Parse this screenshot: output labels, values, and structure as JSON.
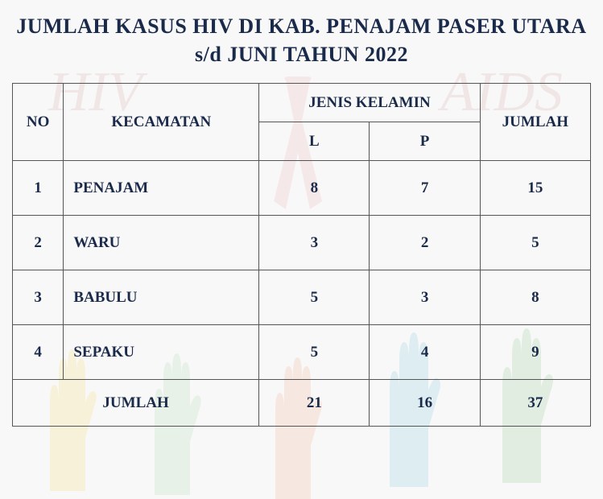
{
  "title": "JUMLAH KASUS HIV DI KAB. PENAJAM PASER UTARA s/d JUNI TAHUN 2022",
  "table": {
    "headers": {
      "no": "NO",
      "kecamatan": "KECAMATAN",
      "jenis_kelamin": "JENIS KELAMIN",
      "l": "L",
      "p": "P",
      "jumlah": "JUMLAH"
    },
    "rows": [
      {
        "no": "1",
        "kecamatan": "PENAJAM",
        "l": "8",
        "p": "7",
        "jumlah": "15"
      },
      {
        "no": "2",
        "kecamatan": "WARU",
        "l": "3",
        "p": "2",
        "jumlah": "5"
      },
      {
        "no": "3",
        "kecamatan": "BABULU",
        "l": "5",
        "p": "3",
        "jumlah": "8"
      },
      {
        "no": "4",
        "kecamatan": "SEPAKU",
        "l": "5",
        "p": "4",
        "jumlah": "9"
      }
    ],
    "footer": {
      "label": "JUMLAH",
      "l": "21",
      "p": "16",
      "jumlah": "37"
    }
  },
  "styling": {
    "title_color": "#1a2a4a",
    "title_fontsize": 26,
    "cell_fontsize": 19,
    "border_color": "#555",
    "background_color": "#f8f8f8",
    "ribbon_color": "#e8a0a0",
    "hand_colors": [
      "#f5d76e",
      "#a8d8a8",
      "#f0a890",
      "#7ec8d8",
      "#88c888"
    ],
    "bg_text_color": "#d4a5a5"
  },
  "bg_text": {
    "hiv": "HIV",
    "aids": "AIDS"
  }
}
